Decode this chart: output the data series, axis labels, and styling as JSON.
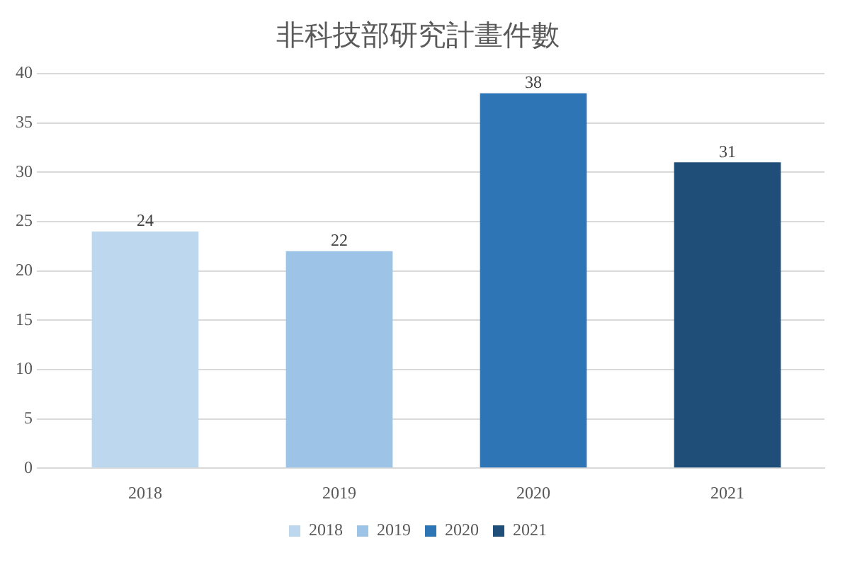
{
  "chart_data": {
    "type": "bar",
    "title": "非科技部研究計畫件數",
    "categories": [
      "2018",
      "2019",
      "2020",
      "2021"
    ],
    "series": [
      {
        "name": "2018",
        "color": "#bdd7ee",
        "values": [
          24,
          null,
          null,
          null
        ]
      },
      {
        "name": "2019",
        "color": "#9dc3e6",
        "values": [
          null,
          22,
          null,
          null
        ]
      },
      {
        "name": "2020",
        "color": "#2e75b6",
        "values": [
          null,
          null,
          38,
          null
        ]
      },
      {
        "name": "2021",
        "color": "#1f4e79",
        "values": [
          null,
          null,
          null,
          31
        ]
      }
    ],
    "ylim": [
      0,
      40
    ],
    "yticks": [
      0,
      5,
      10,
      15,
      20,
      25,
      30,
      35,
      40
    ],
    "grid": "y",
    "legend": "bottom",
    "data_labels": true
  }
}
